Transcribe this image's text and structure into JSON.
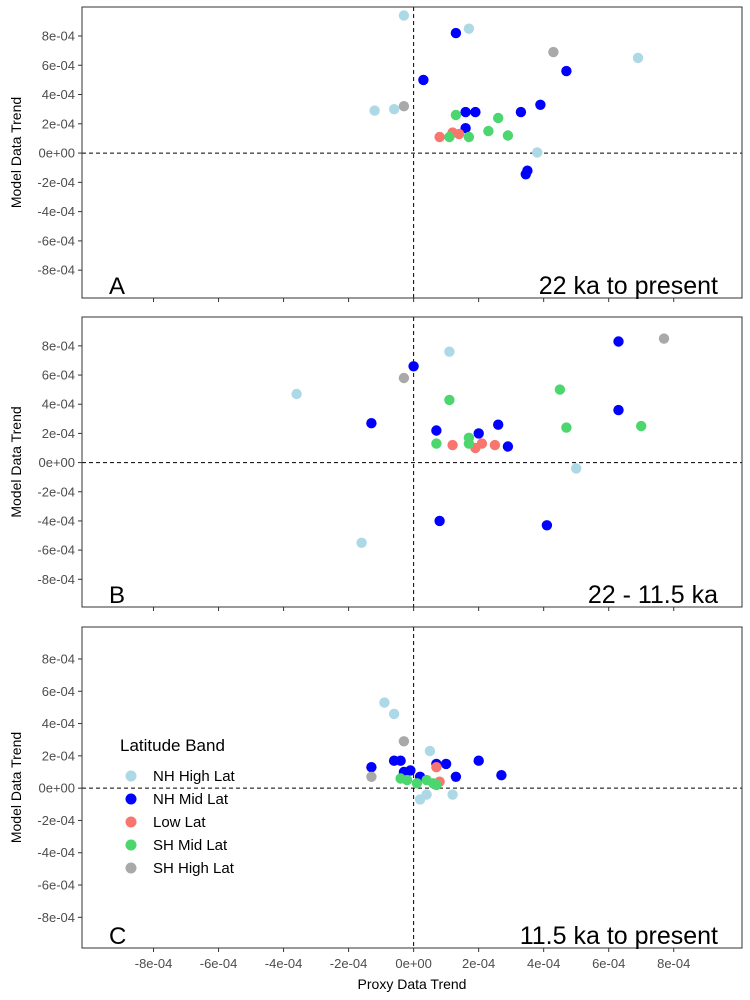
{
  "chart_data": {
    "type": "scatter",
    "xlabel": "Proxy Data Trend",
    "ylabel": "Model Data Trend",
    "xlim": [
      -0.00102,
      0.00101
    ],
    "ylim": [
      -0.00099,
      0.000998
    ],
    "x_ticks": [
      {
        "v": -0.0008,
        "label": "-8e-04"
      },
      {
        "v": -0.0006,
        "label": "-6e-04"
      },
      {
        "v": -0.0004,
        "label": "-4e-04"
      },
      {
        "v": -0.0002,
        "label": "-2e-04"
      },
      {
        "v": 0,
        "label": "0e+00"
      },
      {
        "v": 0.0002,
        "label": "2e-04"
      },
      {
        "v": 0.0004,
        "label": "4e-04"
      },
      {
        "v": 0.0006,
        "label": "6e-04"
      },
      {
        "v": 0.0008,
        "label": "8e-04"
      }
    ],
    "y_ticks": [
      {
        "v": 0.0008,
        "label": "8e-04"
      },
      {
        "v": 0.0006,
        "label": "6e-04"
      },
      {
        "v": 0.0004,
        "label": "4e-04"
      },
      {
        "v": 0.0002,
        "label": "2e-04"
      },
      {
        "v": 0,
        "label": "0e+00"
      },
      {
        "v": -0.0002,
        "label": "-2e-04"
      },
      {
        "v": -0.0004,
        "label": "-4e-04"
      },
      {
        "v": -0.0006,
        "label": "-6e-04"
      },
      {
        "v": -0.0008,
        "label": "-8e-04"
      }
    ],
    "grid": false,
    "reference_lines": "dashed lines at x = 0 and y = 0",
    "legend": {
      "title": "Latitude Band",
      "placement": "inside panel C, left",
      "entries": [
        {
          "name": "NH High Lat",
          "color": "#add8e6"
        },
        {
          "name": "NH Mid Lat",
          "color": "#0000ff"
        },
        {
          "name": "Low Lat",
          "color": "#f8766d"
        },
        {
          "name": "SH Mid Lat",
          "color": "#4cd66e"
        },
        {
          "name": "SH High Lat",
          "color": "#a9a9a9"
        }
      ]
    },
    "panels": [
      {
        "letter": "A",
        "title": "22 ka to present",
        "series": [
          {
            "name": "NH High Lat",
            "points": [
              [
                -3e-05,
                0.00094
              ],
              [
                0.00017,
                0.00085
              ],
              [
                0.00069,
                0.00065
              ],
              [
                -0.00012,
                0.00029
              ],
              [
                -6e-05,
                0.0003
              ],
              [
                0.00038,
                5e-06
              ]
            ]
          },
          {
            "name": "NH Mid Lat",
            "points": [
              [
                0.00013,
                0.00082
              ],
              [
                0.00047,
                0.00056
              ],
              [
                3e-05,
                0.0005
              ],
              [
                0.00039,
                0.00033
              ],
              [
                0.00033,
                0.00028
              ],
              [
                0.00016,
                0.00028
              ],
              [
                0.00019,
                0.00028
              ],
              [
                0.00016,
                0.00017
              ],
              [
                0.00035,
                -0.00012
              ],
              [
                0.000345,
                -0.000145
              ]
            ]
          },
          {
            "name": "Low Lat",
            "points": [
              [
                8e-05,
                0.00011
              ],
              [
                0.00012,
                0.00014
              ],
              [
                0.00014,
                0.00013
              ]
            ]
          },
          {
            "name": "SH Mid Lat",
            "points": [
              [
                0.00013,
                0.00026
              ],
              [
                0.00026,
                0.00024
              ],
              [
                0.00023,
                0.00015
              ],
              [
                0.00011,
                0.00011
              ],
              [
                0.00017,
                0.00011
              ],
              [
                0.00029,
                0.00012
              ]
            ]
          },
          {
            "name": "SH High Lat",
            "points": [
              [
                0.00043,
                0.00069
              ],
              [
                -3e-05,
                0.00032
              ]
            ]
          }
        ]
      },
      {
        "letter": "B",
        "title": "22 - 11.5 ka",
        "series": [
          {
            "name": "NH High Lat",
            "points": [
              [
                0.00011,
                0.00076
              ],
              [
                -0.00036,
                0.00047
              ],
              [
                0.0005,
                -4e-05
              ],
              [
                -0.00016,
                -0.00055
              ]
            ]
          },
          {
            "name": "NH Mid Lat",
            "points": [
              [
                0.00063,
                0.00083
              ],
              [
                0.0,
                0.00066
              ],
              [
                0.00063,
                0.00036
              ],
              [
                -0.00013,
                0.00027
              ],
              [
                0.00026,
                0.00026
              ],
              [
                7e-05,
                0.00022
              ],
              [
                0.0002,
                0.0002
              ],
              [
                0.00029,
                0.00011
              ],
              [
                8e-05,
                -0.0004
              ],
              [
                0.00041,
                -0.00043
              ]
            ]
          },
          {
            "name": "Low Lat",
            "points": [
              [
                0.00012,
                0.00012
              ],
              [
                0.00019,
                0.0001
              ],
              [
                0.00021,
                0.00013
              ],
              [
                0.00025,
                0.00012
              ]
            ]
          },
          {
            "name": "SH Mid Lat",
            "points": [
              [
                0.00045,
                0.0005
              ],
              [
                0.00011,
                0.00043
              ],
              [
                0.00047,
                0.00024
              ],
              [
                0.0007,
                0.00025
              ],
              [
                0.00017,
                0.00017
              ],
              [
                0.00017,
                0.00013
              ],
              [
                7e-05,
                0.00013
              ]
            ]
          },
          {
            "name": "SH High Lat",
            "points": [
              [
                0.00077,
                0.00085
              ],
              [
                -3e-05,
                0.00058
              ]
            ]
          }
        ]
      },
      {
        "letter": "C",
        "title": "11.5 ka to present",
        "series": [
          {
            "name": "NH High Lat",
            "points": [
              [
                -9e-05,
                0.00053
              ],
              [
                -6e-05,
                0.00046
              ],
              [
                5e-05,
                0.00023
              ],
              [
                4e-05,
                -4e-05
              ],
              [
                0.00012,
                -4e-05
              ],
              [
                2e-05,
                -7e-05
              ]
            ]
          },
          {
            "name": "NH Mid Lat",
            "points": [
              [
                -0.00013,
                0.00013
              ],
              [
                -6e-05,
                0.00017
              ],
              [
                -4e-05,
                0.00017
              ],
              [
                -3e-05,
                0.0001
              ],
              [
                -1e-05,
                0.00011
              ],
              [
                2e-05,
                7e-05
              ],
              [
                7e-05,
                0.00015
              ],
              [
                0.0001,
                0.00015
              ],
              [
                0.0002,
                0.00017
              ],
              [
                0.00013,
                7e-05
              ],
              [
                0.00027,
                8e-05
              ]
            ]
          },
          {
            "name": "Low Lat",
            "points": [
              [
                7e-05,
                0.00013
              ],
              [
                8e-05,
                4e-05
              ]
            ]
          },
          {
            "name": "SH Mid Lat",
            "points": [
              [
                -4e-05,
                6e-05
              ],
              [
                -2e-05,
                5e-05
              ],
              [
                1e-05,
                3e-05
              ],
              [
                4e-05,
                5e-05
              ],
              [
                6e-05,
                3e-05
              ],
              [
                7e-05,
                2e-05
              ]
            ]
          },
          {
            "name": "SH High Lat",
            "points": [
              [
                -3e-05,
                0.00029
              ],
              [
                -0.00013,
                7e-05
              ]
            ]
          }
        ]
      }
    ]
  }
}
